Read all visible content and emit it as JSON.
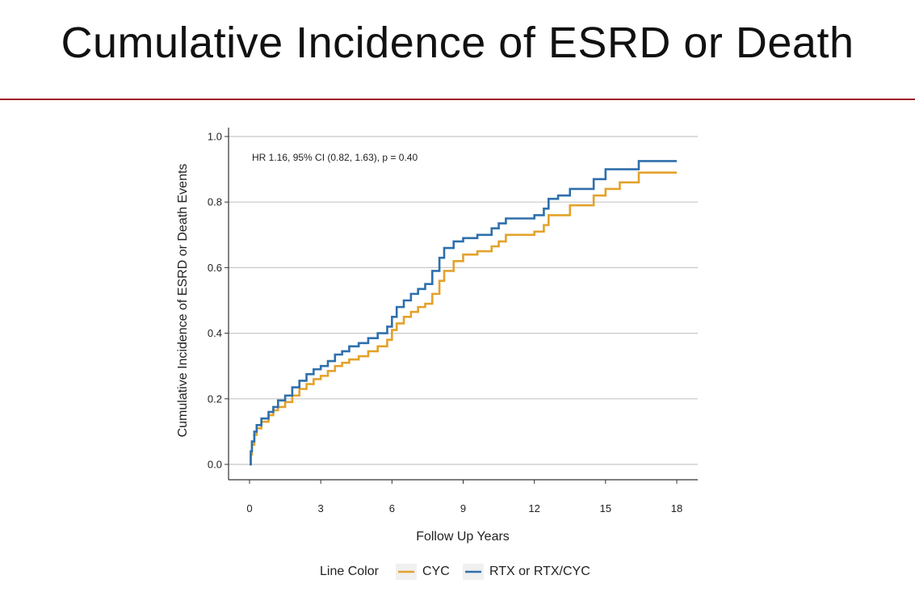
{
  "slide": {
    "title": "Cumulative Incidence of ESRD or Death"
  },
  "chart_data": {
    "type": "line",
    "step": true,
    "title": "",
    "xlabel": "Follow Up Years",
    "ylabel": "Cumulative Incidence of ESRD or Death Events",
    "xlim": [
      0,
      18
    ],
    "ylim": [
      0,
      1.0
    ],
    "xticks": [
      "0",
      "3",
      "6",
      "9",
      "12",
      "15",
      "18"
    ],
    "yticks": [
      "0.0",
      "0.2",
      "0.4",
      "0.6",
      "0.8",
      "1.0"
    ],
    "grid": "horizontal",
    "annotation": "HR 1.16, 95% CI (0.82, 1.63), p = 0.40",
    "legend": {
      "title": "Line Color",
      "position": "bottom"
    },
    "series": [
      {
        "name": "CYC",
        "color": "#e3a22a",
        "x": [
          0,
          0.05,
          0.1,
          0.2,
          0.3,
          0.5,
          0.8,
          1.0,
          1.2,
          1.5,
          1.8,
          2.1,
          2.4,
          2.7,
          3.0,
          3.3,
          3.6,
          3.9,
          4.2,
          4.6,
          5.0,
          5.4,
          5.8,
          6.0,
          6.2,
          6.5,
          6.8,
          7.1,
          7.4,
          7.7,
          8.0,
          8.2,
          8.6,
          9.0,
          9.6,
          10.2,
          10.5,
          10.8,
          11.3,
          11.8,
          12.0,
          12.4,
          12.6,
          13.0,
          13.5,
          14.0,
          14.5,
          15.0,
          15.6,
          16.2,
          16.4,
          17.0,
          18.0
        ],
        "y": [
          0.0,
          0.03,
          0.06,
          0.09,
          0.11,
          0.13,
          0.15,
          0.165,
          0.175,
          0.19,
          0.21,
          0.23,
          0.245,
          0.26,
          0.27,
          0.285,
          0.3,
          0.31,
          0.32,
          0.33,
          0.345,
          0.36,
          0.38,
          0.41,
          0.43,
          0.45,
          0.465,
          0.48,
          0.49,
          0.52,
          0.56,
          0.59,
          0.62,
          0.64,
          0.65,
          0.665,
          0.68,
          0.7,
          0.7,
          0.7,
          0.71,
          0.73,
          0.76,
          0.76,
          0.79,
          0.79,
          0.82,
          0.84,
          0.86,
          0.86,
          0.89,
          0.89,
          0.89
        ]
      },
      {
        "name": "RTX or RTX/CYC",
        "color": "#2e6fac",
        "x": [
          0,
          0.05,
          0.1,
          0.2,
          0.3,
          0.5,
          0.8,
          1.0,
          1.2,
          1.5,
          1.8,
          2.1,
          2.4,
          2.7,
          3.0,
          3.3,
          3.6,
          3.9,
          4.2,
          4.6,
          5.0,
          5.4,
          5.8,
          6.0,
          6.2,
          6.5,
          6.8,
          7.1,
          7.4,
          7.7,
          8.0,
          8.2,
          8.6,
          9.0,
          9.6,
          10.2,
          10.5,
          10.8,
          11.3,
          11.8,
          12.0,
          12.4,
          12.6,
          13.0,
          13.5,
          14.0,
          14.5,
          15.0,
          15.6,
          16.2,
          16.4,
          17.0,
          18.0
        ],
        "y": [
          0.0,
          0.04,
          0.07,
          0.1,
          0.12,
          0.14,
          0.16,
          0.175,
          0.195,
          0.21,
          0.235,
          0.255,
          0.275,
          0.29,
          0.3,
          0.315,
          0.335,
          0.345,
          0.36,
          0.37,
          0.385,
          0.4,
          0.42,
          0.45,
          0.48,
          0.5,
          0.52,
          0.535,
          0.55,
          0.59,
          0.63,
          0.66,
          0.68,
          0.69,
          0.7,
          0.72,
          0.735,
          0.75,
          0.75,
          0.75,
          0.76,
          0.78,
          0.81,
          0.82,
          0.84,
          0.84,
          0.87,
          0.9,
          0.9,
          0.9,
          0.925,
          0.925,
          0.925
        ]
      }
    ]
  }
}
